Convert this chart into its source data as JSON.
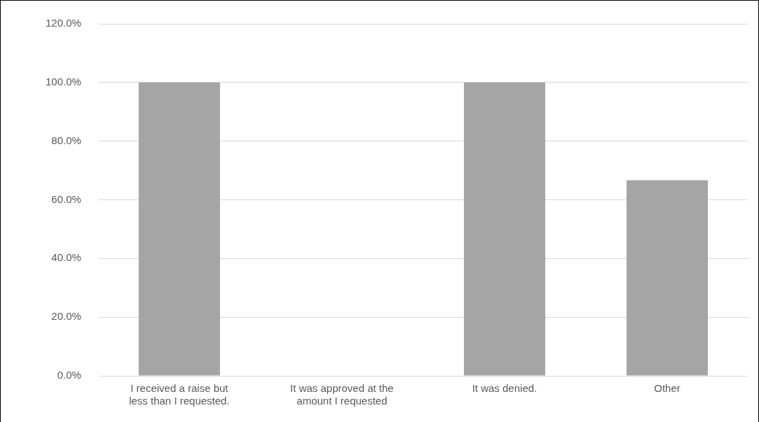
{
  "chart_data": {
    "type": "bar",
    "categories": [
      "I received a raise but less than I requested.",
      "It was approved at the amount I requested",
      "It was denied.",
      "Other"
    ],
    "values": [
      100,
      0,
      100,
      66.7
    ],
    "color": "#a5a5a5",
    "ylim": [
      0,
      120
    ],
    "yticks": [
      {
        "value": 0,
        "label": "0.0%"
      },
      {
        "value": 20,
        "label": "20.0%"
      },
      {
        "value": 40,
        "label": "40.0%"
      },
      {
        "value": 60,
        "label": "60.0%"
      },
      {
        "value": 80,
        "label": "80.0%"
      },
      {
        "value": 100,
        "label": "100.0%"
      },
      {
        "value": 120,
        "label": "120.0%"
      }
    ],
    "grid": "y",
    "legend": false
  }
}
